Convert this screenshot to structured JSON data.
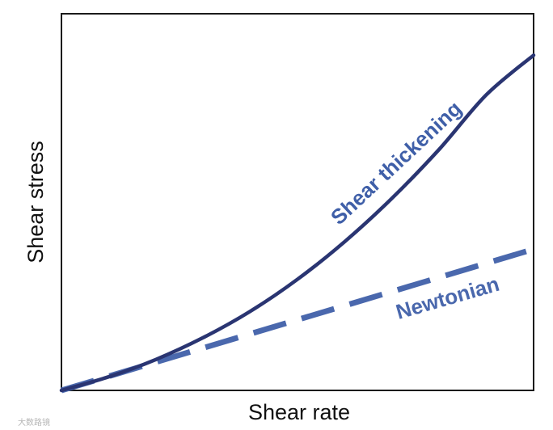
{
  "chart_data": {
    "type": "line",
    "title": "",
    "xlabel": "Shear rate",
    "ylabel": "Shear stress",
    "xlim": [
      0,
      1
    ],
    "ylim": [
      0,
      1
    ],
    "grid": false,
    "ticks": false,
    "series": [
      {
        "name": "Shear thickening",
        "style": "solid",
        "color": "#2a3572",
        "x": [
          0,
          0.1,
          0.2,
          0.3,
          0.4,
          0.5,
          0.6,
          0.7,
          0.8,
          0.9,
          1.0
        ],
        "y": [
          0,
          0.036,
          0.082,
          0.14,
          0.21,
          0.295,
          0.395,
          0.51,
          0.64,
          0.785,
          0.89
        ]
      },
      {
        "name": "Newtonian",
        "style": "dashed",
        "color": "#4a68ad",
        "x": [
          0,
          1.0
        ],
        "y": [
          0,
          0.375
        ]
      }
    ]
  },
  "watermark": {
    "text": "大数路镜"
  }
}
